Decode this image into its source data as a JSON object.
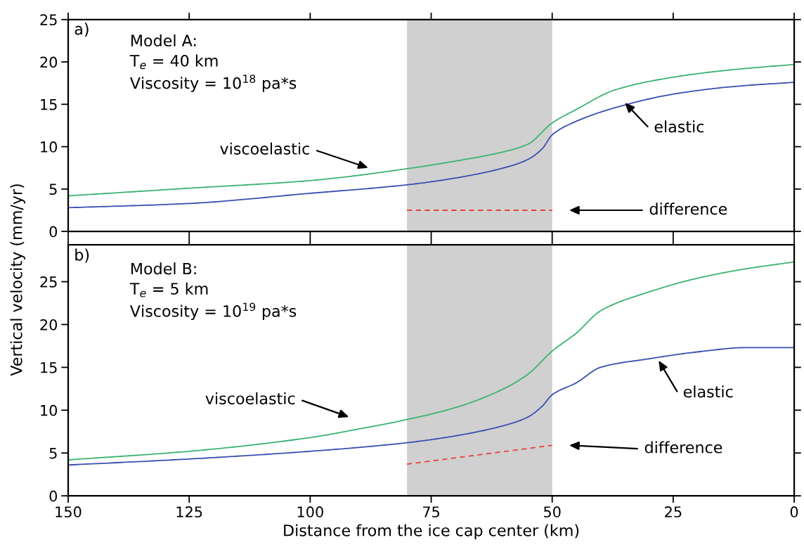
{
  "chart_data": [
    {
      "type": "line",
      "ylabel": "Vertical velocity (mm/yr)",
      "xlim": [
        150,
        0
      ],
      "xticks": [
        150,
        125,
        100,
        75,
        50,
        25,
        0
      ],
      "ylim": [
        0,
        25
      ],
      "yticks": [
        0,
        5,
        10,
        15,
        20,
        25
      ],
      "tick_labels": "y",
      "grid": false,
      "legend": false,
      "line_style": "solid",
      "annotations": [
        "a)",
        "Model A:",
        "T$_{e}$ = 40 km",
        "Viscosity = 10$^{18}$ pa*s",
        "viscoelastic",
        "elastic",
        "difference"
      ],
      "bands": [
        {
          "axis": "x",
          "from": 80,
          "to": 50,
          "color": "#d0d0d0"
        }
      ],
      "series": [
        {
          "color": "#3cb371",
          "x": [
            150,
            125,
            100,
            80,
            70,
            60,
            55,
            50,
            45,
            37,
            25,
            12.5,
            0
          ],
          "values": [
            4.2,
            5.1,
            6.0,
            7.4,
            8.3,
            9.4,
            10.3,
            12.8,
            14.4,
            16.7,
            18.2,
            19.1,
            19.7
          ]
        },
        {
          "color": "#3a4fb0",
          "x": [
            150,
            125,
            100,
            80,
            70,
            60,
            55,
            52,
            50,
            45,
            37,
            25,
            12.5,
            0
          ],
          "values": [
            2.8,
            3.3,
            4.5,
            5.5,
            6.3,
            7.5,
            8.5,
            9.8,
            11.4,
            13.0,
            14.6,
            16.2,
            17.1,
            17.6
          ]
        },
        {
          "color": "#e8403a",
          "line_style": "dashed",
          "x": [
            80,
            50
          ],
          "values": [
            2.5,
            2.5
          ]
        }
      ]
    },
    {
      "type": "line",
      "xlabel": "Distance from the ice cap center (km)",
      "xlim": [
        150,
        0
      ],
      "xticks": [
        150,
        125,
        100,
        75,
        50,
        25,
        0
      ],
      "ylim": [
        0,
        29.3
      ],
      "yticks": [
        0,
        5,
        10,
        15,
        20,
        25
      ],
      "grid": false,
      "legend": false,
      "line_style": "solid",
      "annotations": [
        "b)",
        "Model B:",
        "T$_{e}$ = 5 km",
        "Viscosity = 10$^{19}$ pa*s",
        "viscoelastic",
        "elastic",
        "difference"
      ],
      "bands": [
        {
          "axis": "x",
          "from": 80,
          "to": 50,
          "color": "#d0d0d0"
        }
      ],
      "series": [
        {
          "color": "#3cb371",
          "x": [
            150,
            125,
            100,
            90,
            80,
            70,
            60,
            55,
            50,
            45,
            40,
            30,
            20,
            10,
            0
          ],
          "values": [
            4.2,
            5.2,
            6.8,
            7.8,
            8.9,
            10.3,
            12.5,
            14.2,
            16.9,
            19.0,
            21.6,
            23.8,
            25.4,
            26.5,
            27.3
          ]
        },
        {
          "color": "#3a4fb0",
          "x": [
            150,
            125,
            100,
            80,
            70,
            60,
            55,
            52,
            50,
            45,
            40,
            30,
            20,
            10,
            0
          ],
          "values": [
            3.6,
            4.3,
            5.2,
            6.2,
            7.0,
            8.2,
            9.2,
            10.5,
            11.8,
            13.2,
            15.0,
            16.0,
            16.8,
            17.3,
            17.3
          ]
        },
        {
          "color": "#e8403a",
          "line_style": "dashed",
          "x": [
            80,
            50
          ],
          "values": [
            3.7,
            5.9
          ]
        }
      ]
    }
  ]
}
